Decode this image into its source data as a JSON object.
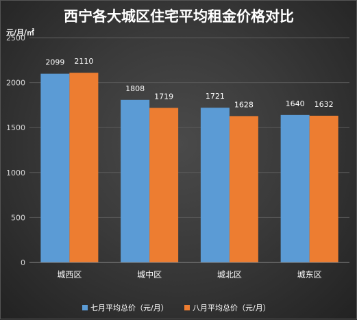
{
  "chart_data": {
    "type": "bar",
    "title": "西宁各大城区住宅平均租金价格对比",
    "ylabel": "元/月/㎡",
    "xlabel": "",
    "ylim": [
      0,
      2500
    ],
    "yticks": [
      0,
      500,
      1000,
      1500,
      2000,
      2500
    ],
    "categories": [
      "城西区",
      "城中区",
      "城北区",
      "城东区"
    ],
    "series": [
      {
        "name": "七月平均总价（元/月）",
        "values": [
          2099,
          1808,
          1721,
          1640
        ],
        "color": "#5b9bd5"
      },
      {
        "name": "八月平均总价（元/月）",
        "values": [
          2110,
          1719,
          1628,
          1632
        ],
        "color": "#ed7d31"
      }
    ],
    "grid": true,
    "legend": "bottom"
  }
}
